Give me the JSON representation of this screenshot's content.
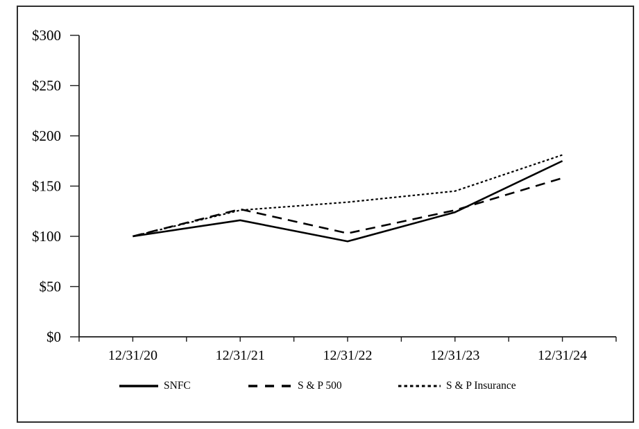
{
  "chart_data": {
    "type": "line",
    "title": "",
    "xlabel": "",
    "ylabel": "",
    "categories": [
      "12/31/20",
      "12/31/21",
      "12/31/22",
      "12/31/23",
      "12/31/24"
    ],
    "series": [
      {
        "name": "SNFC",
        "style": "solid",
        "values": [
          100,
          116,
          95,
          124,
          175
        ]
      },
      {
        "name": "S & P 500",
        "style": "dashed",
        "values": [
          100,
          127,
          103,
          126,
          158
        ]
      },
      {
        "name": "S & P Insurance",
        "style": "dotted",
        "values": [
          100,
          126,
          134,
          145,
          181
        ]
      }
    ],
    "y_axis": {
      "min": 0,
      "max": 300,
      "step": 50,
      "tick_labels": [
        "$0",
        "$50",
        "$100",
        "$150",
        "$200",
        "$250",
        "$300"
      ]
    },
    "x_axis": {
      "tick_labels": [
        "12/31/20",
        "12/31/21",
        "12/31/22",
        "12/31/23",
        "12/31/24"
      ]
    },
    "legend_position": "bottom",
    "grid": false,
    "line_color": "#000000",
    "axis_color": "#1a1a1a",
    "background_color": "#ffffff"
  }
}
